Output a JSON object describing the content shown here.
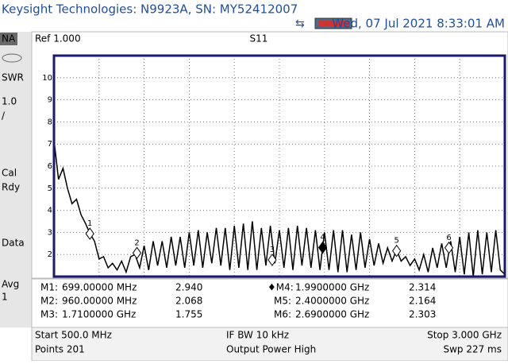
{
  "header": {
    "title": "Keysight Technologies: N9923A, SN: MY52412007",
    "datetime": "Wed, 07 Jul 2021 8:33:01 AM"
  },
  "sidebar": [
    "NA",
    "SWR",
    "1.0",
    "/",
    "Cal",
    "Rdy",
    "Data",
    "Avg",
    "1"
  ],
  "chart_data": {
    "type": "line",
    "ref": "Ref 1.000",
    "title": "S11",
    "color": "#000000",
    "x": [
      500,
      525,
      550,
      575,
      600,
      625,
      650,
      675,
      700,
      725,
      750,
      775,
      800,
      825,
      850,
      875,
      900,
      925,
      950,
      975,
      1000,
      1025,
      1050,
      1075,
      1100,
      1125,
      1150,
      1175,
      1200,
      1225,
      1250,
      1275,
      1300,
      1325,
      1350,
      1375,
      1400,
      1425,
      1450,
      1475,
      1500,
      1525,
      1550,
      1575,
      1600,
      1625,
      1650,
      1675,
      1700,
      1725,
      1750,
      1775,
      1800,
      1825,
      1850,
      1875,
      1900,
      1925,
      1950,
      1975,
      2000,
      2025,
      2050,
      2075,
      2100,
      2125,
      2150,
      2175,
      2200,
      2225,
      2250,
      2275,
      2300,
      2325,
      2350,
      2375,
      2400,
      2425,
      2450,
      2475,
      2500,
      2525,
      2550,
      2575,
      2600,
      2625,
      2650,
      2675,
      2700,
      2725,
      2750,
      2775,
      2800,
      2825,
      2850,
      2875,
      2900,
      2925,
      2950,
      2975,
      3000
    ],
    "values": [
      7.2,
      5.4,
      5.9,
      5.0,
      4.3,
      4.5,
      3.8,
      3.4,
      2.94,
      2.6,
      1.8,
      1.9,
      1.4,
      1.6,
      1.3,
      1.7,
      1.2,
      1.9,
      2.0,
      1.4,
      2.4,
      1.3,
      2.6,
      1.5,
      2.6,
      1.4,
      2.8,
      1.5,
      2.8,
      1.4,
      3.0,
      1.5,
      3.1,
      1.4,
      3.0,
      1.6,
      3.2,
      1.5,
      3.2,
      1.3,
      3.3,
      1.4,
      3.4,
      1.3,
      3.5,
      1.3,
      3.2,
      1.5,
      3.3,
      1.6,
      3.1,
      1.4,
      3.2,
      1.3,
      3.3,
      1.5,
      3.2,
      1.4,
      3.1,
      1.3,
      3.0,
      1.3,
      3.1,
      1.2,
      3.1,
      1.2,
      2.9,
      1.3,
      3.0,
      1.4,
      2.7,
      1.5,
      2.5,
      1.6,
      2.3,
      1.7,
      2.2,
      1.7,
      1.9,
      1.5,
      1.8,
      1.3,
      2.0,
      1.2,
      2.3,
      1.4,
      2.5,
      1.4,
      2.6,
      1.2,
      2.8,
      1.1,
      3.0,
      1.0,
      3.1,
      1.1,
      3.0,
      1.2,
      3.1,
      1.3,
      1.1
    ],
    "xlim": [
      500,
      3000
    ],
    "ylim": [
      1,
      11
    ],
    "yticks": [
      2,
      3,
      4,
      5,
      6,
      7,
      8,
      9,
      10
    ],
    "grid": true,
    "markers": [
      {
        "name": "M1:",
        "tag": "1",
        "x": 699,
        "x_label": "699.00000 MHz",
        "value": 2.94,
        "value_label": "2.940"
      },
      {
        "name": "M2:",
        "tag": "2",
        "x": 960,
        "x_label": "960.00000 MHz",
        "value": 2.068
      },
      {
        "name": "M3:",
        "tag": "3",
        "x": 1710,
        "x_label": "1.7100000 GHz",
        "value": 1.755
      },
      {
        "name": "♦M4:",
        "tag": "4",
        "x": 1990,
        "x_label": "1.9900000 GHz",
        "value": 2.314
      },
      {
        "name": "M5:",
        "tag": "5",
        "x": 2400,
        "x_label": "2.4000000 GHz",
        "value": 2.164
      },
      {
        "name": "M6:",
        "tag": "6",
        "x": 2690,
        "x_label": "2.6900000 GHz",
        "value": 2.303
      }
    ]
  },
  "footer": {
    "rows": [
      [
        "Start 500.0 MHz",
        "IF BW 10 kHz",
        "Stop 3.000 GHz"
      ],
      [
        "Points 201",
        "Output Power High",
        "Swp 227 ms"
      ]
    ]
  }
}
